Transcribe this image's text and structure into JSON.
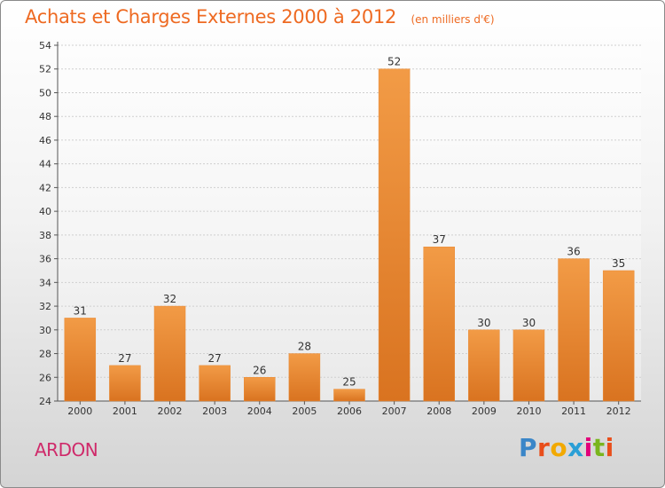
{
  "header": {
    "title": "Achats et Charges Externes 2000 à 2012",
    "unit": "(en milliers d'€)"
  },
  "footer": {
    "city": "ARDON",
    "logo_letters": [
      "P",
      "r",
      "o",
      "x",
      "i",
      "t",
      "i"
    ],
    "logo_colors": [
      "#3a86c8",
      "#e94e1b",
      "#f2a900",
      "#2a9fd6",
      "#e2007a",
      "#7ab51d",
      "#e94e1b"
    ]
  },
  "chart_data": {
    "type": "bar",
    "categories": [
      "2000",
      "2001",
      "2002",
      "2003",
      "2004",
      "2005",
      "2006",
      "2007",
      "2008",
      "2009",
      "2010",
      "2011",
      "2012"
    ],
    "values": [
      31,
      27,
      32,
      27,
      26,
      28,
      25,
      52,
      37,
      30,
      30,
      36,
      35
    ],
    "data_labels": [
      "31",
      "27",
      "32",
      "27",
      "26",
      "28",
      "25",
      "52",
      "37",
      "30",
      "30",
      "36",
      "35"
    ],
    "y_ticks": [
      "24",
      "26",
      "28",
      "30",
      "32",
      "34",
      "36",
      "38",
      "40",
      "42",
      "44",
      "46",
      "48",
      "50",
      "52",
      "54"
    ],
    "ylim": [
      24,
      54
    ],
    "y_tick_step": 2,
    "grid": true,
    "bar_color": "#f29b46",
    "bar_color_dark": "#d97320"
  }
}
